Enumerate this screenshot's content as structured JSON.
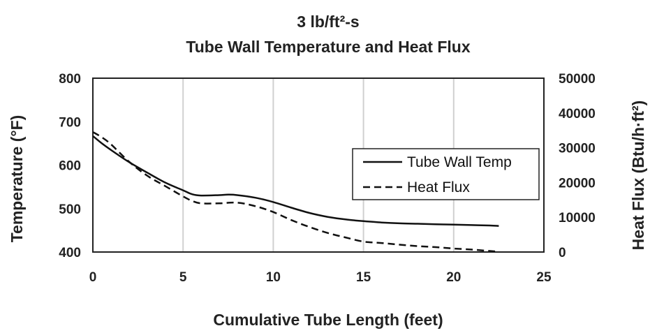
{
  "chart_data": {
    "type": "line",
    "title_lines": [
      "3 lb/ft²-s",
      "Tube Wall  Temperature and Heat Flux"
    ],
    "xlabel": "Cumulative Tube Length (feet)",
    "ylabel_left": "Temperature (°F)",
    "ylabel_right": "Heat Flux (Btu/h·ft²)",
    "xlim": [
      0,
      25
    ],
    "xticks": [
      0,
      5,
      10,
      15,
      20,
      25
    ],
    "ylim_left": [
      400,
      800
    ],
    "yticks_left": [
      400,
      500,
      600,
      700,
      800
    ],
    "ylim_right": [
      0,
      50000
    ],
    "yticks_right": [
      0,
      10000,
      20000,
      30000,
      40000,
      50000
    ],
    "grid": "vertical",
    "legend_position": "right-center",
    "series": [
      {
        "name": "Tube Wall Temp",
        "axis": "left",
        "style": "solid",
        "x": [
          0,
          0.5,
          1,
          2,
          3,
          4,
          5,
          5.5,
          6,
          7,
          7.5,
          8,
          9,
          10,
          11,
          12,
          13,
          14,
          15,
          16,
          17,
          18,
          19,
          20,
          21,
          22,
          22.5
        ],
        "y": [
          667,
          650,
          635,
          607,
          583,
          560,
          542,
          533,
          530,
          531,
          532,
          531,
          525,
          515,
          502,
          490,
          481,
          475,
          471,
          468,
          466,
          465,
          464,
          463,
          462,
          461,
          460
        ]
      },
      {
        "name": "Heat Flux",
        "axis": "right",
        "style": "dashed",
        "x": [
          0,
          0.5,
          1,
          2,
          3,
          4,
          5,
          5.5,
          6,
          7,
          8,
          9,
          10,
          11,
          12,
          13,
          14,
          15,
          16,
          17,
          18,
          19,
          20,
          21,
          22,
          22.5
        ],
        "y": [
          34500,
          33000,
          31000,
          26000,
          22000,
          19000,
          16000,
          14700,
          14000,
          14000,
          14200,
          13200,
          11500,
          9200,
          7200,
          5500,
          4200,
          3000,
          2600,
          2100,
          1700,
          1400,
          1000,
          700,
          300,
          100
        ]
      }
    ]
  }
}
